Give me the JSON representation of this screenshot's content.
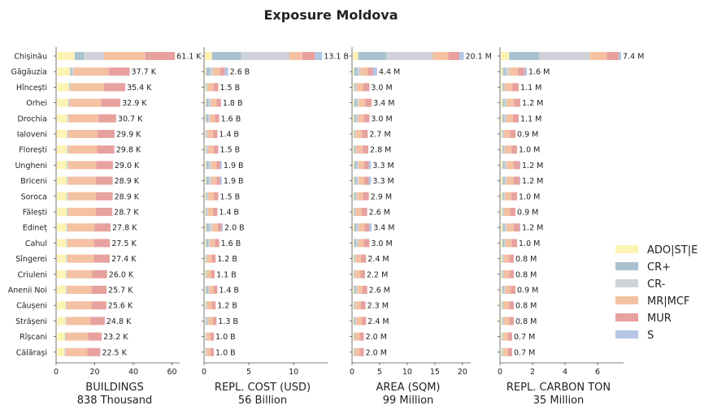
{
  "chart_data": {
    "type": "bar",
    "stacked": true,
    "orientation": "horizontal",
    "title": "Exposure Moldova",
    "categories": [
      "Chișinău",
      "Găgăuzia",
      "Hîncești",
      "Orhei",
      "Drochia",
      "Ialoveni",
      "Florești",
      "Ungheni",
      "Briceni",
      "Soroca",
      "Fălești",
      "Edineț",
      "Cahul",
      "Sîngerei",
      "Criuleni",
      "Anenii Noi",
      "Căușeni",
      "Strășeni",
      "Rîșcani",
      "Călărași"
    ],
    "legend": {
      "position": "right",
      "entries": [
        {
          "name": "ADO|ST|E",
          "color": "#fdf3b4"
        },
        {
          "name": "CR+",
          "color": "#a9c2d0"
        },
        {
          "name": "CR-",
          "color": "#cfd3d9"
        },
        {
          "name": "MR|MCF",
          "color": "#f4c1a2"
        },
        {
          "name": "MUR",
          "color": "#e7a19e"
        },
        {
          "name": "S",
          "color": "#b5c6e6"
        }
      ]
    },
    "panels": [
      {
        "title": "BUILDINGS",
        "subtitle": "838 Thousand",
        "xlim": [
          0,
          64
        ],
        "xticks": [
          0,
          20,
          40,
          60
        ],
        "xticklabels": [
          "0",
          "20",
          "40",
          "60"
        ],
        "totals": [
          61.1,
          37.7,
          35.4,
          32.9,
          30.7,
          29.9,
          29.8,
          29.0,
          28.9,
          28.9,
          28.7,
          27.8,
          27.5,
          27.4,
          26.0,
          25.7,
          25.6,
          24.8,
          23.2,
          22.5
        ],
        "labels": [
          "61.1 K",
          "37.7 K",
          "35.4 K",
          "32.9 K",
          "30.7 K",
          "29.9 K",
          "29.8 K",
          "29.0 K",
          "28.9 K",
          "28.9 K",
          "28.7 K",
          "27.8 K",
          "27.5 K",
          "27.4 K",
          "26.0 K",
          "25.7 K",
          "25.6 K",
          "24.8 K",
          "23.2 K",
          "22.5 K"
        ],
        "shares": [
          [
            0.15,
            0.08,
            0.17,
            0.35,
            0.25,
            0.0
          ],
          [
            0.18,
            0.02,
            0.03,
            0.48,
            0.29,
            0.0
          ],
          [
            0.18,
            0.01,
            0.01,
            0.49,
            0.31,
            0.0
          ],
          [
            0.18,
            0.01,
            0.01,
            0.5,
            0.3,
            0.0
          ],
          [
            0.18,
            0.01,
            0.01,
            0.5,
            0.3,
            0.0
          ],
          [
            0.18,
            0.01,
            0.01,
            0.5,
            0.3,
            0.0
          ],
          [
            0.18,
            0.01,
            0.01,
            0.5,
            0.3,
            0.0
          ],
          [
            0.18,
            0.01,
            0.01,
            0.5,
            0.3,
            0.0
          ],
          [
            0.18,
            0.01,
            0.01,
            0.5,
            0.3,
            0.0
          ],
          [
            0.18,
            0.01,
            0.01,
            0.5,
            0.3,
            0.0
          ],
          [
            0.18,
            0.01,
            0.01,
            0.5,
            0.3,
            0.0
          ],
          [
            0.18,
            0.01,
            0.01,
            0.5,
            0.3,
            0.0
          ],
          [
            0.18,
            0.01,
            0.01,
            0.5,
            0.3,
            0.0
          ],
          [
            0.18,
            0.01,
            0.01,
            0.5,
            0.3,
            0.0
          ],
          [
            0.18,
            0.01,
            0.01,
            0.5,
            0.3,
            0.0
          ],
          [
            0.18,
            0.01,
            0.01,
            0.5,
            0.3,
            0.0
          ],
          [
            0.18,
            0.01,
            0.01,
            0.5,
            0.3,
            0.0
          ],
          [
            0.18,
            0.01,
            0.01,
            0.5,
            0.3,
            0.0
          ],
          [
            0.18,
            0.01,
            0.01,
            0.5,
            0.3,
            0.0
          ],
          [
            0.18,
            0.01,
            0.01,
            0.5,
            0.3,
            0.0
          ]
        ]
      },
      {
        "title": "REPL. COST (USD)",
        "subtitle": "56 Billion",
        "xlim": [
          0,
          13.8
        ],
        "xticks": [
          0,
          5,
          10
        ],
        "xticklabels": [
          "0",
          "5",
          "10"
        ],
        "totals": [
          13.1,
          2.6,
          1.5,
          1.8,
          1.6,
          1.4,
          1.5,
          1.9,
          1.9,
          1.5,
          1.4,
          2.0,
          1.6,
          1.2,
          1.1,
          1.4,
          1.2,
          1.3,
          1.0,
          1.0
        ],
        "labels": [
          "13.1 B",
          "2.6 B",
          "1.5 B",
          "1.8 B",
          "1.6 B",
          "1.4 B",
          "1.5 B",
          "1.9 B",
          "1.9 B",
          "1.5 B",
          "1.4 B",
          "2.0 B",
          "1.6 B",
          "1.2 B",
          "1.1 B",
          "1.4 B",
          "1.2 B",
          "1.3 B",
          "1.0 B",
          "1.0 B"
        ],
        "shares": [
          [
            0.06,
            0.25,
            0.41,
            0.11,
            0.11,
            0.06
          ],
          [
            0.06,
            0.15,
            0.15,
            0.3,
            0.2,
            0.14
          ],
          [
            0.08,
            0.06,
            0.06,
            0.45,
            0.35,
            0.0
          ],
          [
            0.08,
            0.15,
            0.15,
            0.35,
            0.27,
            0.0
          ],
          [
            0.08,
            0.15,
            0.12,
            0.35,
            0.3,
            0.0
          ],
          [
            0.08,
            0.06,
            0.06,
            0.45,
            0.35,
            0.0
          ],
          [
            0.08,
            0.08,
            0.08,
            0.42,
            0.34,
            0.0
          ],
          [
            0.08,
            0.15,
            0.15,
            0.3,
            0.22,
            0.1
          ],
          [
            0.08,
            0.15,
            0.15,
            0.3,
            0.22,
            0.1
          ],
          [
            0.08,
            0.08,
            0.08,
            0.42,
            0.34,
            0.0
          ],
          [
            0.08,
            0.08,
            0.08,
            0.42,
            0.34,
            0.0
          ],
          [
            0.08,
            0.18,
            0.15,
            0.3,
            0.22,
            0.07
          ],
          [
            0.08,
            0.15,
            0.12,
            0.35,
            0.3,
            0.0
          ],
          [
            0.08,
            0.06,
            0.06,
            0.45,
            0.35,
            0.0
          ],
          [
            0.08,
            0.06,
            0.06,
            0.45,
            0.35,
            0.0
          ],
          [
            0.08,
            0.15,
            0.12,
            0.35,
            0.3,
            0.0
          ],
          [
            0.08,
            0.06,
            0.06,
            0.45,
            0.35,
            0.0
          ],
          [
            0.08,
            0.12,
            0.1,
            0.4,
            0.3,
            0.0
          ],
          [
            0.08,
            0.06,
            0.06,
            0.45,
            0.35,
            0.0
          ],
          [
            0.08,
            0.06,
            0.06,
            0.45,
            0.35,
            0.0
          ]
        ]
      },
      {
        "title": "AREA (SQM)",
        "subtitle": "99 Million",
        "xlim": [
          0,
          21.5
        ],
        "xticks": [
          0,
          5,
          10,
          15,
          20
        ],
        "xticklabels": [
          "0",
          "5",
          "10",
          "15",
          "20"
        ],
        "totals": [
          20.1,
          4.4,
          3.0,
          3.4,
          3.0,
          2.7,
          2.8,
          3.3,
          3.3,
          2.9,
          2.6,
          3.4,
          3.0,
          2.4,
          2.2,
          2.6,
          2.3,
          2.4,
          2.0,
          2.0
        ],
        "labels": [
          "20.1 M",
          "4.4 M",
          "3.0 M",
          "3.4 M",
          "3.0 M",
          "2.7 M",
          "2.8 M",
          "3.3 M",
          "3.3 M",
          "2.9 M",
          "2.6 M",
          "3.4 M",
          "3.0 M",
          "2.4 M",
          "2.2 M",
          "2.6 M",
          "2.3 M",
          "2.4 M",
          "2.0 M",
          "2.0 M"
        ],
        "shares": [
          [
            0.05,
            0.25,
            0.42,
            0.14,
            0.1,
            0.04
          ],
          [
            0.06,
            0.12,
            0.14,
            0.3,
            0.2,
            0.18
          ],
          [
            0.08,
            0.08,
            0.06,
            0.4,
            0.38,
            0.0
          ],
          [
            0.08,
            0.12,
            0.12,
            0.35,
            0.33,
            0.0
          ],
          [
            0.08,
            0.12,
            0.12,
            0.35,
            0.33,
            0.0
          ],
          [
            0.08,
            0.06,
            0.06,
            0.42,
            0.38,
            0.0
          ],
          [
            0.08,
            0.08,
            0.08,
            0.4,
            0.36,
            0.0
          ],
          [
            0.08,
            0.12,
            0.12,
            0.3,
            0.25,
            0.13
          ],
          [
            0.08,
            0.12,
            0.12,
            0.3,
            0.25,
            0.13
          ],
          [
            0.08,
            0.1,
            0.08,
            0.38,
            0.36,
            0.0
          ],
          [
            0.08,
            0.06,
            0.06,
            0.42,
            0.38,
            0.0
          ],
          [
            0.08,
            0.12,
            0.12,
            0.3,
            0.25,
            0.13
          ],
          [
            0.08,
            0.12,
            0.12,
            0.35,
            0.33,
            0.0
          ],
          [
            0.08,
            0.06,
            0.06,
            0.42,
            0.38,
            0.0
          ],
          [
            0.08,
            0.06,
            0.06,
            0.42,
            0.38,
            0.0
          ],
          [
            0.08,
            0.12,
            0.12,
            0.35,
            0.33,
            0.0
          ],
          [
            0.08,
            0.06,
            0.06,
            0.42,
            0.38,
            0.0
          ],
          [
            0.08,
            0.1,
            0.08,
            0.4,
            0.34,
            0.0
          ],
          [
            0.08,
            0.06,
            0.06,
            0.42,
            0.38,
            0.0
          ],
          [
            0.08,
            0.06,
            0.06,
            0.42,
            0.38,
            0.0
          ]
        ]
      },
      {
        "title": "REPL. CARBON TON",
        "subtitle": "35 Million",
        "xlim": [
          0,
          7.6
        ],
        "xticks": [
          0,
          2,
          4,
          6
        ],
        "xticklabels": [
          "0",
          "2",
          "4",
          "6"
        ],
        "totals": [
          7.4,
          1.6,
          1.1,
          1.2,
          1.1,
          0.9,
          1.0,
          1.2,
          1.2,
          1.0,
          0.9,
          1.2,
          1.0,
          0.8,
          0.8,
          0.9,
          0.8,
          0.8,
          0.7,
          0.7
        ],
        "labels": [
          "7.4 M",
          "1.6 M",
          "1.1 M",
          "1.2 M",
          "1.1 M",
          "0.9 M",
          "1.0 M",
          "1.2 M",
          "1.2 M",
          "1.0 M",
          "0.9 M",
          "1.2 M",
          "1.0 M",
          "0.8 M",
          "0.8 M",
          "0.9 M",
          "0.8 M",
          "0.8 M",
          "0.7 M",
          "0.7 M"
        ],
        "shares": [
          [
            0.07,
            0.25,
            0.42,
            0.14,
            0.1,
            0.02
          ],
          [
            0.08,
            0.1,
            0.14,
            0.35,
            0.25,
            0.08
          ],
          [
            0.1,
            0.06,
            0.06,
            0.42,
            0.36,
            0.0
          ],
          [
            0.1,
            0.1,
            0.1,
            0.38,
            0.32,
            0.0
          ],
          [
            0.1,
            0.1,
            0.1,
            0.38,
            0.32,
            0.0
          ],
          [
            0.1,
            0.06,
            0.06,
            0.42,
            0.36,
            0.0
          ],
          [
            0.1,
            0.08,
            0.08,
            0.4,
            0.34,
            0.0
          ],
          [
            0.1,
            0.1,
            0.1,
            0.36,
            0.3,
            0.04
          ],
          [
            0.1,
            0.1,
            0.1,
            0.36,
            0.3,
            0.04
          ],
          [
            0.1,
            0.08,
            0.08,
            0.4,
            0.34,
            0.0
          ],
          [
            0.1,
            0.06,
            0.06,
            0.42,
            0.36,
            0.0
          ],
          [
            0.1,
            0.1,
            0.1,
            0.36,
            0.3,
            0.04
          ],
          [
            0.1,
            0.1,
            0.1,
            0.38,
            0.32,
            0.0
          ],
          [
            0.1,
            0.06,
            0.06,
            0.42,
            0.36,
            0.0
          ],
          [
            0.1,
            0.06,
            0.06,
            0.42,
            0.36,
            0.0
          ],
          [
            0.1,
            0.1,
            0.1,
            0.38,
            0.32,
            0.0
          ],
          [
            0.1,
            0.06,
            0.06,
            0.42,
            0.36,
            0.0
          ],
          [
            0.1,
            0.08,
            0.08,
            0.4,
            0.34,
            0.0
          ],
          [
            0.1,
            0.06,
            0.06,
            0.42,
            0.36,
            0.0
          ],
          [
            0.1,
            0.06,
            0.06,
            0.42,
            0.36,
            0.0
          ]
        ]
      }
    ]
  }
}
